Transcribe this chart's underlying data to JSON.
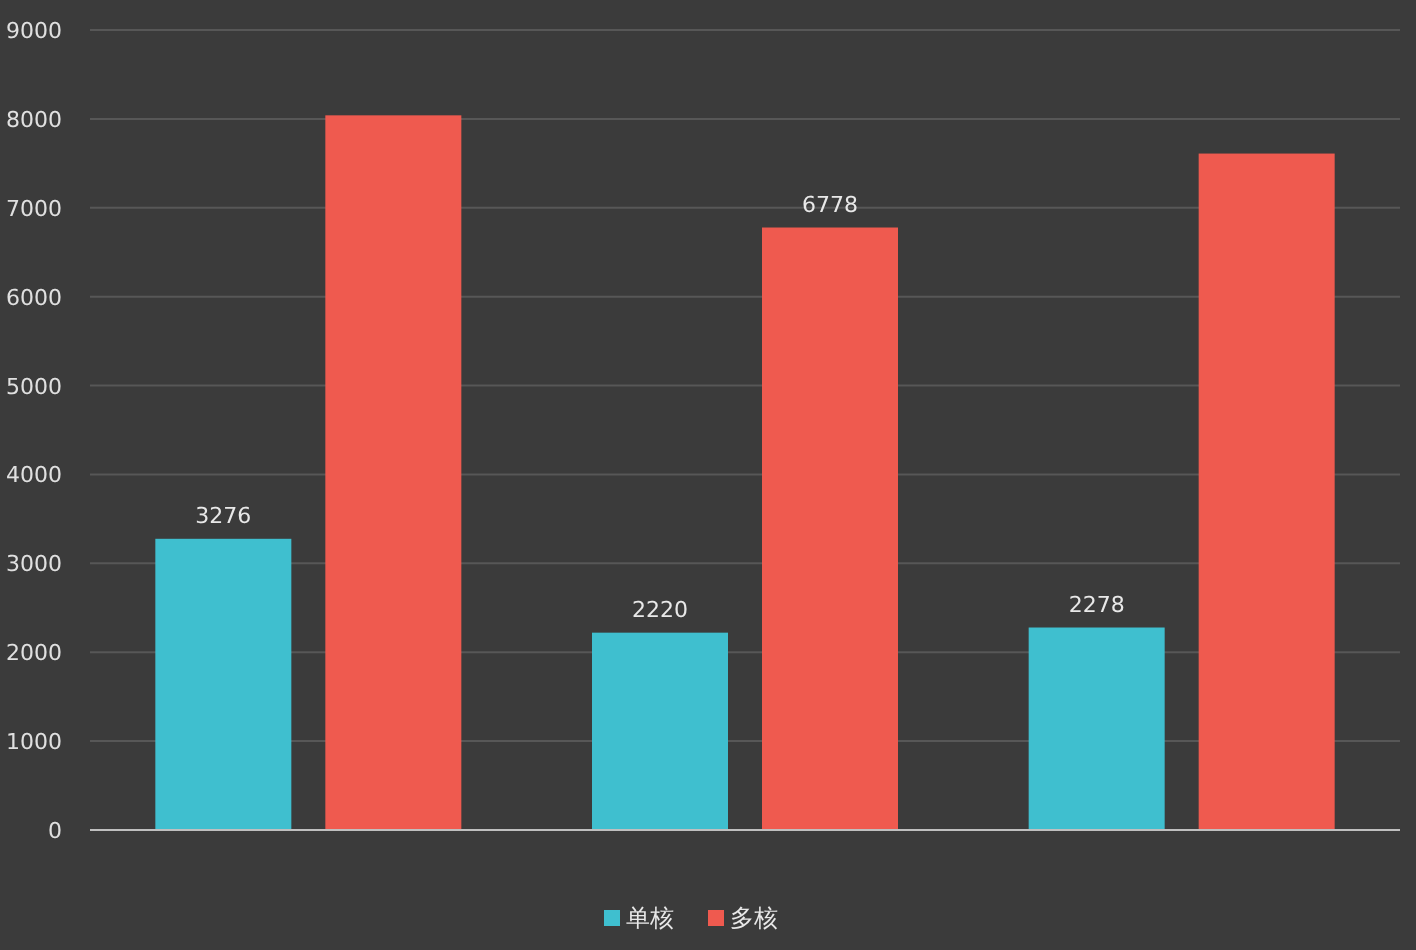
{
  "chart_data": {
    "type": "bar",
    "categories": [
      null,
      null,
      null
    ],
    "series": [
      {
        "name": "单核",
        "color": "#3fbfcf",
        "values": [
          3276,
          2220,
          2278
        ],
        "value_labels": [
          "3276",
          "2220",
          "2278"
        ]
      },
      {
        "name": "多核",
        "color": "#ef5a4f",
        "values": [
          8040,
          6778,
          7610
        ],
        "value_labels": [
          null,
          "6778",
          null
        ]
      }
    ],
    "ylim": [
      0,
      9000
    ],
    "yticks": [
      0,
      1000,
      2000,
      3000,
      4000,
      5000,
      6000,
      7000,
      8000,
      9000
    ],
    "grid": "y",
    "legend": "bottom"
  }
}
